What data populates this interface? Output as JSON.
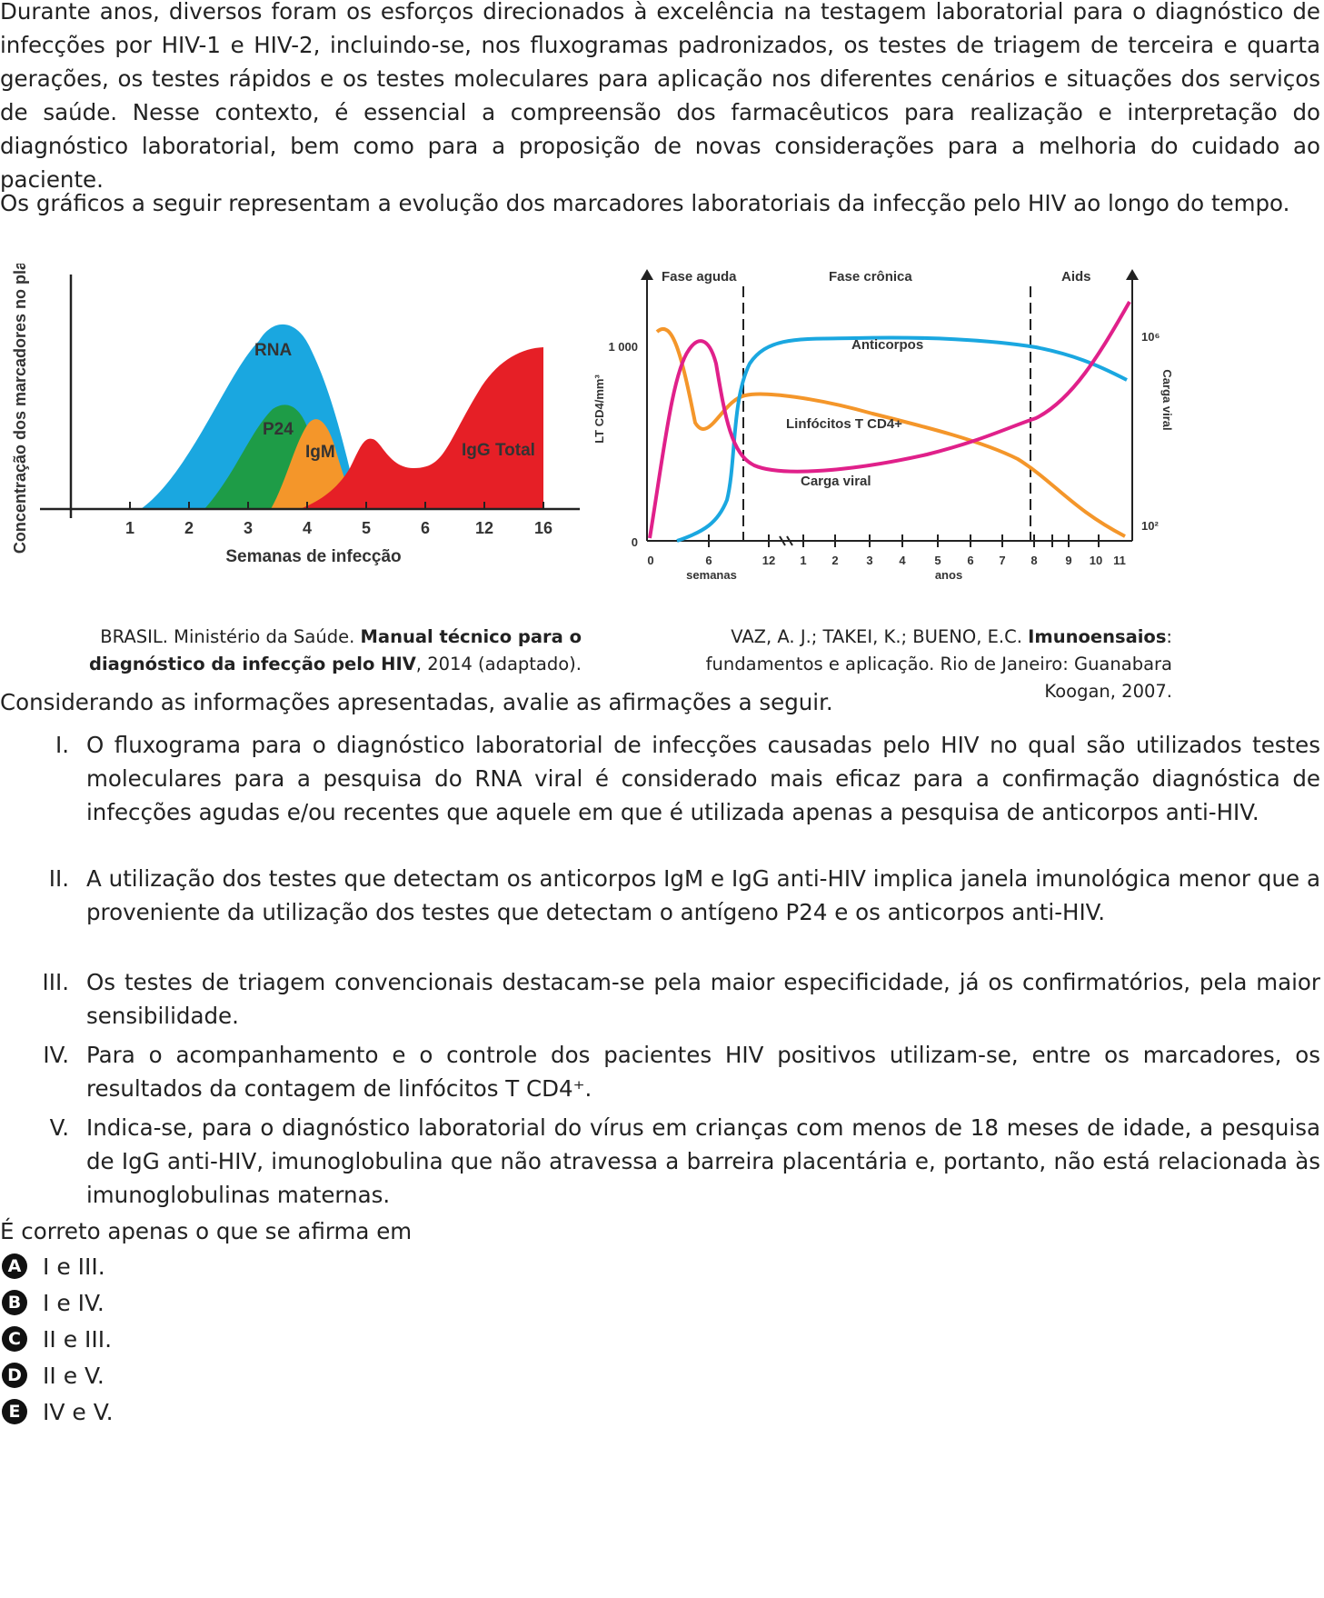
{
  "intro": "Durante anos, diversos foram os esforços direcionados à excelência na testagem laboratorial para o diagnóstico de infecções por HIV-1 e HIV-2, incluindo-se, nos fluxogramas padronizados, os testes de triagem de terceira e quarta gerações, os testes rápidos e os testes moleculares para aplicação nos diferentes cenários e situações dos serviços de saúde. Nesse contexto, é essencial a compreensão dos farmacêuticos para realização e interpretação do diagnóstico laboratorial, bem como para a proposição de novas considerações para a melhoria do cuidado ao paciente.",
  "graphs_intro": "Os gráficos a seguir representam a evolução dos marcadores laboratoriais da infecção pelo HIV ao longo do tempo.",
  "chart_data": [
    {
      "type": "area",
      "title": "",
      "xlabel": "Semanas de infecção",
      "ylabel": "Concentração dos marcadores no plasma",
      "categories": [
        "1",
        "2",
        "3",
        "4",
        "5",
        "6",
        "12",
        "16"
      ],
      "series": [
        {
          "name": "RNA",
          "color": "#1aa7e0",
          "peak_week": "3.5",
          "values": [
            0.1,
            0.55,
            0.93,
            0.85,
            0.4,
            0.0,
            0.0,
            0.0
          ]
        },
        {
          "name": "P24",
          "color": "#1e9c47",
          "peak_week": "3.6",
          "values": [
            0.0,
            0.15,
            0.55,
            0.5,
            0.1,
            0.0,
            0.0,
            0.0
          ]
        },
        {
          "name": "IgM",
          "color": "#f4962a",
          "peak_week": "4.1",
          "values": [
            0.0,
            0.0,
            0.25,
            0.48,
            0.15,
            0.0,
            0.0,
            0.0
          ]
        },
        {
          "name": "IgG Total",
          "color": "#e61f26",
          "values": [
            0.0,
            0.0,
            0.0,
            0.1,
            0.36,
            0.25,
            0.5,
            0.85
          ]
        }
      ]
    },
    {
      "type": "line",
      "title": "",
      "phases": [
        "Fase aguda",
        "Fase crônica",
        "Aids"
      ],
      "xticks_weeks": [
        "0",
        "6",
        "12"
      ],
      "xticks_years": [
        "1",
        "2",
        "3",
        "4",
        "5",
        "6",
        "7",
        "8",
        "9",
        "10",
        "11"
      ],
      "xunit_weeks": "semanas",
      "xunit_years": "anos",
      "ylabel_left": "LT CD4/mm³",
      "yticks_left": [
        "0",
        "1 000"
      ],
      "ylabel_right": "Carga viral",
      "yticks_right": [
        "10²",
        "10⁶"
      ],
      "series": [
        {
          "name": "Anticorpos",
          "color": "#1aa7e0"
        },
        {
          "name": "Linfócitos T CD4+",
          "color": "#f4962a"
        },
        {
          "name": "Carga viral",
          "color": "#e0208a"
        }
      ]
    }
  ],
  "source1": {
    "author": "BRASIL. Ministério da Saúde. ",
    "title": "Manual técnico para o diagnóstico da infecção pelo HIV",
    "rest": ", 2014 (adaptado)."
  },
  "source2": {
    "author": "VAZ, A. J.; TAKEI, K.; BUENO, E.C. ",
    "title": "Imunoensaios",
    "rest": ": fundamentos e aplicação. Rio de Janeiro: Guanabara Koogan, 2007."
  },
  "question_intro": "Considerando as informações apresentadas, avalie as afirmações a seguir.",
  "statements": [
    {
      "num": "I.",
      "text": "O fluxograma para o diagnóstico laboratorial de infecções causadas pelo HIV no qual são utilizados testes moleculares para a pesquisa do RNA viral é considerado mais eficaz para a confirmação diagnóstica de infecções agudas e/ou recentes que aquele em que é utilizada apenas a pesquisa de anticorpos anti-HIV."
    },
    {
      "num": "II.",
      "text": "A utilização dos testes que detectam os anticorpos IgM e IgG anti-HIV implica janela imunológica menor que a proveniente da utilização dos testes que detectam o antígeno P24 e os anticorpos anti-HIV."
    },
    {
      "num": "III.",
      "text": "Os testes de triagem convencionais destacam-se pela maior especificidade, já os confirmatórios, pela maior sensibilidade."
    },
    {
      "num": "IV.",
      "text": "Para o acompanhamento e o controle dos pacientes HIV positivos utilizam-se, entre os marcadores, os resultados da contagem de linfócitos T CD4⁺."
    },
    {
      "num": "V.",
      "text": "Indica-se, para o diagnóstico laboratorial do vírus em crianças com menos de 18 meses de idade, a pesquisa de IgG anti-HIV, imunoglobulina que não atravessa a barreira placentária e, portanto, não está relacionada às imunoglobulinas maternas."
    }
  ],
  "answer_prompt": "É correto apenas o que se afirma em",
  "options": [
    {
      "letter": "A",
      "text": "I e III."
    },
    {
      "letter": "B",
      "text": "I e IV."
    },
    {
      "letter": "C",
      "text": "II e III."
    },
    {
      "letter": "D",
      "text": "II e V."
    },
    {
      "letter": "E",
      "text": "IV e V."
    }
  ]
}
